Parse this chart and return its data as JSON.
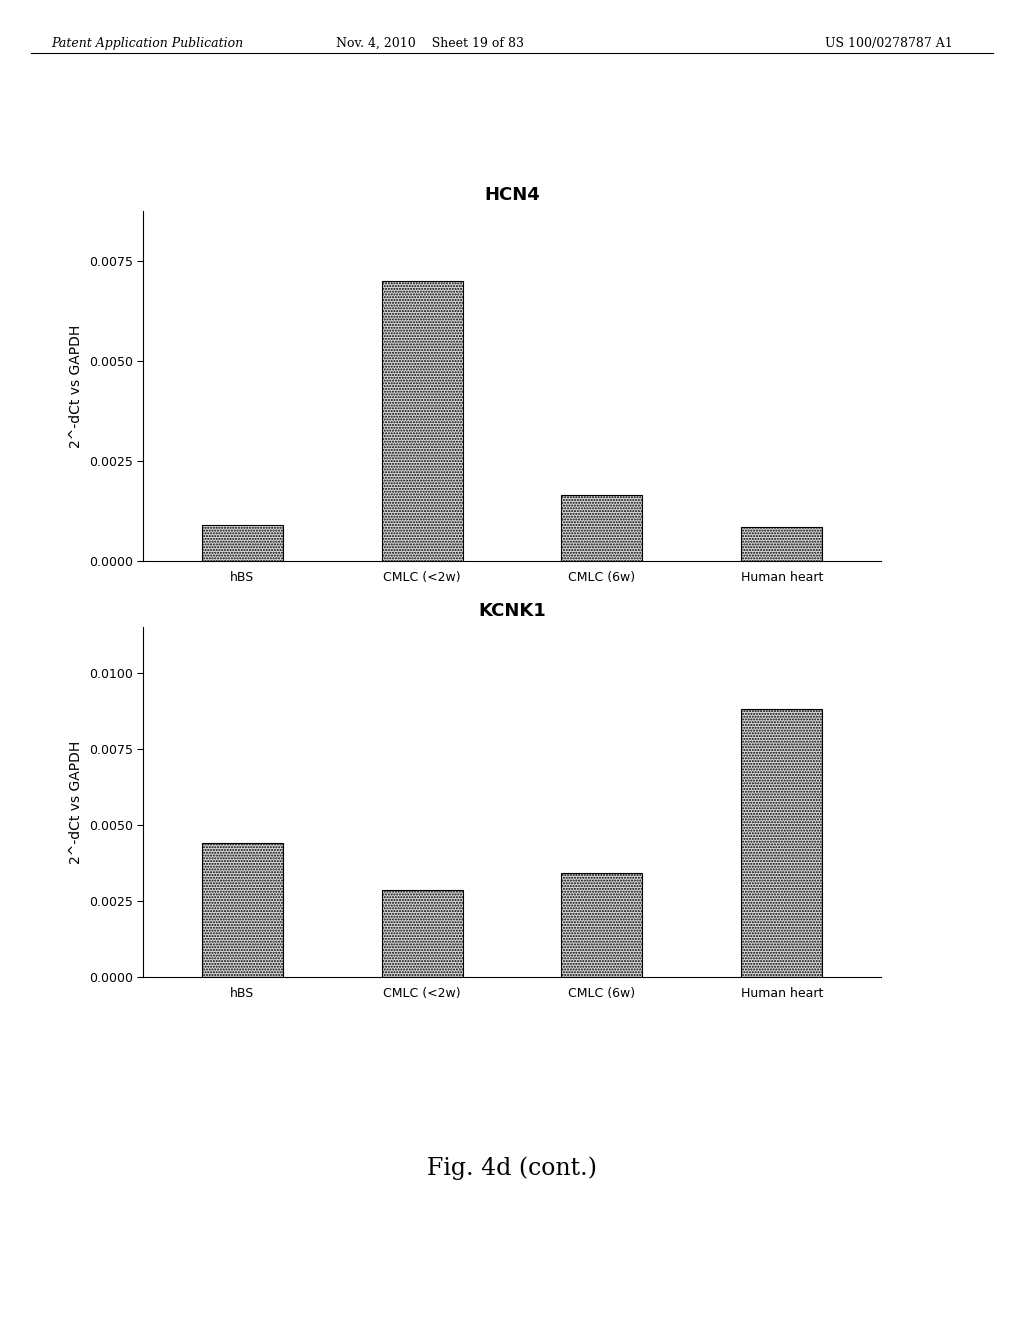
{
  "chart1": {
    "title": "HCN4",
    "categories": [
      "hBS",
      "CMLC (<2w)",
      "CMLC (6w)",
      "Human heart"
    ],
    "values": [
      0.0009,
      0.007,
      0.00165,
      0.00085
    ],
    "ylabel": "2^-dCt vs GAPDH",
    "ylim": [
      0,
      0.00875
    ],
    "yticks": [
      0.0,
      0.0025,
      0.005,
      0.0075
    ],
    "ytick_labels": [
      "0.0000",
      "0.0025",
      "0.0050",
      "0.0075"
    ]
  },
  "chart2": {
    "title": "KCNK1",
    "categories": [
      "hBS",
      "CMLC (<2w)",
      "CMLC (6w)",
      "Human heart"
    ],
    "values": [
      0.0044,
      0.00285,
      0.0034,
      0.0088
    ],
    "ylabel": "2^-dCt vs GAPDH",
    "ylim": [
      0,
      0.0115
    ],
    "yticks": [
      0.0,
      0.0025,
      0.005,
      0.0075,
      0.01
    ],
    "ytick_labels": [
      "0.0000",
      "0.0025",
      "0.0050",
      "0.0075",
      "0.0100"
    ]
  },
  "bar_color": "#d8d8d8",
  "bar_edgecolor": "#000000",
  "background_color": "#ffffff",
  "header_left": "Patent Application Publication",
  "header_mid": "Nov. 4, 2010    Sheet 19 of 83",
  "header_right": "US 100/0278787 A1",
  "fig_label": "Fig. 4d (cont.)",
  "title_fontsize": 13,
  "axis_fontsize": 10,
  "tick_fontsize": 9,
  "header_fontsize": 9
}
